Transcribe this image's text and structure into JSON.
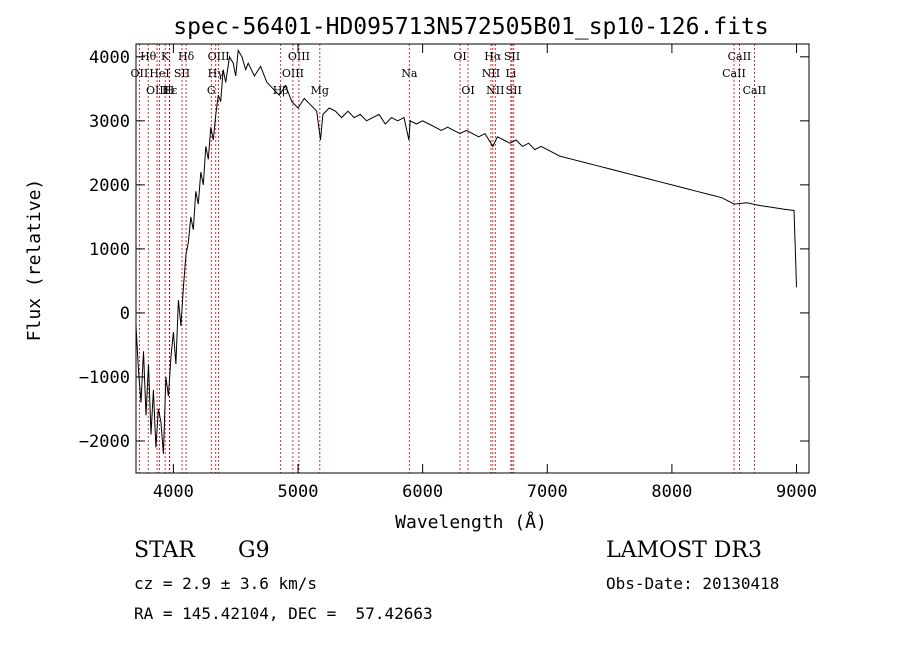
{
  "chart_data": {
    "type": "line",
    "title": "spec-56401-HD095713N572505B01_sp10-126.fits",
    "xlabel": "Wavelength (Å)",
    "ylabel": "Flux (relative)",
    "xlim": [
      3700,
      9100
    ],
    "ylim": [
      -2500,
      4200
    ],
    "xticks": [
      4000,
      5000,
      6000,
      7000,
      8000,
      9000
    ],
    "yticks": [
      -2000,
      -1000,
      0,
      1000,
      2000,
      3000,
      4000
    ],
    "series": [
      {
        "name": "flux",
        "x": [
          3700,
          3720,
          3740,
          3760,
          3780,
          3800,
          3820,
          3840,
          3860,
          3880,
          3900,
          3920,
          3940,
          3960,
          3980,
          4000,
          4020,
          4040,
          4060,
          4080,
          4100,
          4120,
          4140,
          4160,
          4180,
          4200,
          4220,
          4240,
          4260,
          4280,
          4300,
          4320,
          4340,
          4360,
          4380,
          4400,
          4420,
          4450,
          4480,
          4500,
          4520,
          4550,
          4580,
          4600,
          4650,
          4700,
          4750,
          4800,
          4850,
          4900,
          4950,
          5000,
          5050,
          5100,
          5150,
          5180,
          5200,
          5250,
          5300,
          5350,
          5400,
          5450,
          5500,
          5550,
          5600,
          5650,
          5700,
          5750,
          5800,
          5850,
          5890,
          5900,
          5950,
          6000,
          6050,
          6100,
          6150,
          6200,
          6250,
          6300,
          6350,
          6400,
          6450,
          6500,
          6563,
          6600,
          6650,
          6700,
          6750,
          6800,
          6850,
          6900,
          6950,
          7000,
          7100,
          7200,
          7300,
          7400,
          7500,
          7600,
          7700,
          7800,
          7900,
          8000,
          8100,
          8200,
          8300,
          8400,
          8500,
          8600,
          8700,
          8800,
          8900,
          8980,
          8990,
          9000
        ],
        "y": [
          -200,
          -900,
          -1400,
          -600,
          -1600,
          -800,
          -1900,
          -1200,
          -2100,
          -1500,
          -1700,
          -2200,
          -1000,
          -1300,
          -700,
          -300,
          -800,
          200,
          -200,
          400,
          900,
          1100,
          1500,
          1300,
          1900,
          1700,
          2200,
          2000,
          2600,
          2400,
          2900,
          2700,
          3100,
          3400,
          3300,
          3800,
          3600,
          4000,
          3900,
          3700,
          4100,
          4000,
          3800,
          3900,
          3700,
          3850,
          3600,
          3500,
          3400,
          3550,
          3300,
          3200,
          3350,
          3250,
          3150,
          2700,
          3100,
          3200,
          3150,
          3050,
          3150,
          3050,
          3100,
          3000,
          3050,
          3100,
          2950,
          3050,
          3000,
          3050,
          2700,
          3000,
          2950,
          3000,
          2950,
          2900,
          2850,
          2900,
          2850,
          2800,
          2850,
          2800,
          2750,
          2800,
          2600,
          2750,
          2700,
          2650,
          2700,
          2600,
          2650,
          2550,
          2600,
          2550,
          2450,
          2400,
          2350,
          2300,
          2250,
          2200,
          2150,
          2100,
          2050,
          2000,
          1950,
          1900,
          1850,
          1800,
          1700,
          1720,
          1680,
          1650,
          1620,
          1600,
          1000,
          400
        ]
      }
    ],
    "lines": [
      {
        "name": "Hθ",
        "wl": 3798,
        "row": 0
      },
      {
        "name": "OII",
        "wl": 3727,
        "row": 1
      },
      {
        "name": "OIII",
        "wl": 3869,
        "row": 2
      },
      {
        "name": "K",
        "wl": 3934,
        "row": 0
      },
      {
        "name": "HeI",
        "wl": 3889,
        "row": 1
      },
      {
        "name": "Hε",
        "wl": 3970,
        "row": 2
      },
      {
        "name": "Hδ",
        "wl": 4102,
        "row": 0
      },
      {
        "name": "SII",
        "wl": 4069,
        "row": 1
      },
      {
        "name": "H",
        "wl": 3968,
        "row": 2
      },
      {
        "name": "OIII",
        "wl": 4363,
        "row": 0
      },
      {
        "name": "Hγ",
        "wl": 4340,
        "row": 1
      },
      {
        "name": "G",
        "wl": 4304,
        "row": 2
      },
      {
        "name": "OIII",
        "wl": 5007,
        "row": 0
      },
      {
        "name": "OIII",
        "wl": 4959,
        "row": 1
      },
      {
        "name": "Hβ",
        "wl": 4861,
        "row": 2
      },
      {
        "name": "Mg",
        "wl": 5175,
        "row": 2
      },
      {
        "name": "Na",
        "wl": 5893,
        "row": 1
      },
      {
        "name": "OI",
        "wl": 6300,
        "row": 0
      },
      {
        "name": "OI",
        "wl": 6364,
        "row": 2
      },
      {
        "name": "Hα",
        "wl": 6563,
        "row": 0
      },
      {
        "name": "NII",
        "wl": 6548,
        "row": 1
      },
      {
        "name": "NII",
        "wl": 6583,
        "row": 2
      },
      {
        "name": "SII",
        "wl": 6717,
        "row": 0
      },
      {
        "name": "Li",
        "wl": 6708,
        "row": 1
      },
      {
        "name": "SII",
        "wl": 6731,
        "row": 2
      },
      {
        "name": "CaII",
        "wl": 8542,
        "row": 0
      },
      {
        "name": "CaII",
        "wl": 8498,
        "row": 1
      },
      {
        "name": "CaII",
        "wl": 8662,
        "row": 2
      }
    ]
  },
  "info": {
    "class": "STAR",
    "subclass": "G9",
    "survey": "LAMOST DR3",
    "cz": "cz = 2.9 ± 3.6 km/s",
    "obsdate": "Obs-Date: 20130418",
    "radec": "RA = 145.42104, DEC =  57.42663"
  }
}
